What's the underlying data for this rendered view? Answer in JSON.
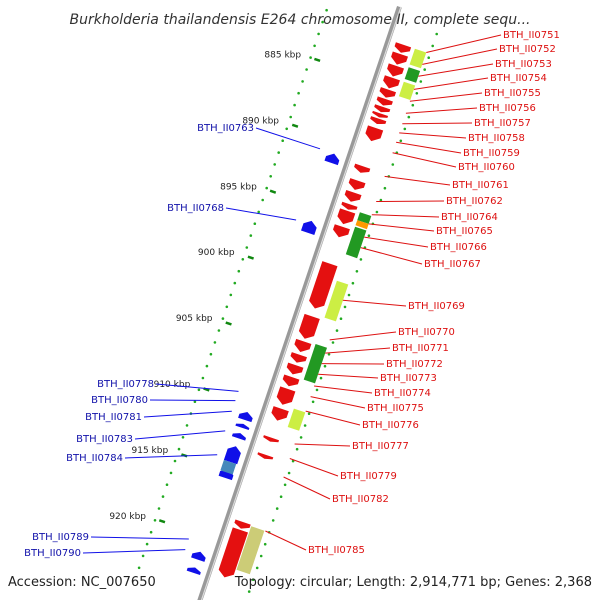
{
  "title": "Burkholderia thailandensis E264 chromosome II, complete sequ...",
  "footer": {
    "accession": "Accession: NC_007650",
    "topology": "Topology: circular; Length: 2,914,771 bp; Genes: 2,368"
  },
  "colors": {
    "forward_gene": "#e41010",
    "reverse_gene": "#1010e8",
    "forward_label": "#dd1111",
    "reverse_label": "#1111aa",
    "backbone": "#999999",
    "tick_dots": "#22aa22",
    "gc_light": "#ccee44",
    "gc_dark": "#229922",
    "orange": "#ff9900",
    "khaki": "#cccc77",
    "steel": "#4488bb"
  },
  "kbp_ticks": [
    {
      "label": "885 kbp",
      "pos": 885
    },
    {
      "label": "890 kbp",
      "pos": 890
    },
    {
      "label": "895 kbp",
      "pos": 895
    },
    {
      "label": "900 kbp",
      "pos": 900
    },
    {
      "label": "905 kbp",
      "pos": 905
    },
    {
      "label": "910 kbp",
      "pos": 910
    },
    {
      "label": "915 kbp",
      "pos": 915
    },
    {
      "label": "920 kbp",
      "pos": 920
    }
  ],
  "reverse_labels": [
    {
      "text": "BTH_II0763",
      "gene_pos": 891.0
    },
    {
      "text": "BTH_II0768",
      "gene_pos": 896.4
    },
    {
      "text": "BTH_II0778",
      "gene_pos": 909.4
    },
    {
      "text": "BTH_II0780",
      "gene_pos": 910.1
    },
    {
      "text": "BTH_II0781",
      "gene_pos": 910.9
    },
    {
      "text": "BTH_II0783",
      "gene_pos": 912.4
    },
    {
      "text": "BTH_II0784",
      "gene_pos": 914.2
    },
    {
      "text": "BTH_II0789",
      "gene_pos": 920.6
    },
    {
      "text": "BTH_II0790",
      "gene_pos": 921.4
    }
  ],
  "forward_labels": [
    {
      "text": "BTH_II0751",
      "gene_pos": 882.0
    },
    {
      "text": "BTH_II0752",
      "gene_pos": 882.9
    },
    {
      "text": "BTH_II0753",
      "gene_pos": 883.8
    },
    {
      "text": "BTH_II0754",
      "gene_pos": 884.8
    },
    {
      "text": "BTH_II0755",
      "gene_pos": 885.7
    },
    {
      "text": "BTH_II0756",
      "gene_pos": 886.6
    },
    {
      "text": "BTH_II0757",
      "gene_pos": 887.4
    },
    {
      "text": "BTH_II0758",
      "gene_pos": 888.1
    },
    {
      "text": "BTH_II0759",
      "gene_pos": 888.8
    },
    {
      "text": "BTH_II0760",
      "gene_pos": 889.6
    },
    {
      "text": "BTH_II0761",
      "gene_pos": 891.4
    },
    {
      "text": "BTH_II0762",
      "gene_pos": 893.3
    },
    {
      "text": "BTH_II0764",
      "gene_pos": 894.3
    },
    {
      "text": "BTH_II0765",
      "gene_pos": 895.0
    },
    {
      "text": "BTH_II0766",
      "gene_pos": 896.0
    },
    {
      "text": "BTH_II0767",
      "gene_pos": 896.8
    },
    {
      "text": "BTH_II0769",
      "gene_pos": 900.8
    },
    {
      "text": "BTH_II0770",
      "gene_pos": 903.8
    },
    {
      "text": "BTH_II0771",
      "gene_pos": 904.8
    },
    {
      "text": "BTH_II0772",
      "gene_pos": 905.6
    },
    {
      "text": "BTH_II0773",
      "gene_pos": 906.4
    },
    {
      "text": "BTH_II0774",
      "gene_pos": 907.3
    },
    {
      "text": "BTH_II0775",
      "gene_pos": 908.1
    },
    {
      "text": "BTH_II0776",
      "gene_pos": 909.2
    },
    {
      "text": "BTH_II0777",
      "gene_pos": 911.7
    },
    {
      "text": "BTH_II0779",
      "gene_pos": 912.8
    },
    {
      "text": "BTH_II0782",
      "gene_pos": 914.2
    },
    {
      "text": "BTH_II0785",
      "gene_pos": 918.3
    }
  ],
  "forward_genes": [
    {
      "start": 882.0,
      "end": 882.6
    },
    {
      "start": 882.7,
      "end": 883.5
    },
    {
      "start": 883.6,
      "end": 884.4
    },
    {
      "start": 884.5,
      "end": 885.3
    },
    {
      "start": 885.4,
      "end": 886.0
    },
    {
      "start": 886.1,
      "end": 886.6
    },
    {
      "start": 886.7,
      "end": 887.1
    },
    {
      "start": 887.2,
      "end": 887.5
    },
    {
      "start": 887.6,
      "end": 888.0
    },
    {
      "start": 888.3,
      "end": 889.3
    },
    {
      "start": 891.2,
      "end": 891.7
    },
    {
      "start": 892.3,
      "end": 893.0
    },
    {
      "start": 893.2,
      "end": 893.9
    },
    {
      "start": 894.1,
      "end": 894.5
    },
    {
      "start": 894.6,
      "end": 895.6
    },
    {
      "start": 895.8,
      "end": 896.6
    },
    {
      "start": 898.6,
      "end": 902.0
    },
    {
      "start": 902.6,
      "end": 904.3
    },
    {
      "start": 904.5,
      "end": 905.3
    },
    {
      "start": 905.5,
      "end": 906.1
    },
    {
      "start": 906.3,
      "end": 907.0
    },
    {
      "start": 907.2,
      "end": 907.9
    },
    {
      "start": 908.1,
      "end": 909.3
    },
    {
      "start": 909.6,
      "end": 910.5
    },
    {
      "start": 911.8,
      "end": 912.1
    },
    {
      "start": 913.1,
      "end": 913.4
    },
    {
      "start": 918.2,
      "end": 918.7
    },
    {
      "start": 918.8,
      "end": 922.4
    }
  ],
  "reverse_genes": [
    {
      "start": 891.0,
      "end": 891.7
    },
    {
      "start": 896.1,
      "end": 897.0
    },
    {
      "start": 910.6,
      "end": 911.2
    },
    {
      "start": 911.5,
      "end": 911.8
    },
    {
      "start": 912.2,
      "end": 912.6
    },
    {
      "start": 913.2,
      "end": 914.4
    },
    {
      "start": 914.9,
      "end": 915.6
    },
    {
      "start": 921.2,
      "end": 921.8
    },
    {
      "start": 922.4,
      "end": 922.8
    }
  ]
}
